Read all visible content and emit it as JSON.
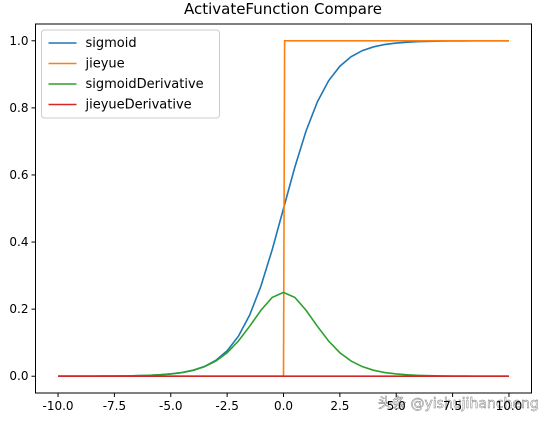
{
  "chart_data": {
    "type": "line",
    "title": "ActivateFunction Compare",
    "watermark": "头条 @yishujihancheng",
    "xlim": [
      -11,
      11
    ],
    "ylim": [
      -0.05,
      1.05
    ],
    "xticks": [
      {
        "value": -10,
        "label": "-10.0"
      },
      {
        "value": -7.5,
        "label": "-7.5"
      },
      {
        "value": -5,
        "label": "-5.0"
      },
      {
        "value": -2.5,
        "label": "-2.5"
      },
      {
        "value": 0,
        "label": "0.0"
      },
      {
        "value": 2.5,
        "label": "2.5"
      },
      {
        "value": 5,
        "label": "5.0"
      },
      {
        "value": 7.5,
        "label": "7.5"
      },
      {
        "value": 10,
        "label": "10.0"
      }
    ],
    "yticks": [
      {
        "value": 0,
        "label": "0.0"
      },
      0.2,
      0.4,
      0.6,
      0.8,
      {
        "value": 1,
        "label": "1.0"
      }
    ],
    "legend": "upper left",
    "series": [
      {
        "name": "sigmoid",
        "color": "#1f77b4",
        "x": [
          -10,
          -9.5,
          -9,
          -8.5,
          -8,
          -7.5,
          -7,
          -6.5,
          -6,
          -5.5,
          -5,
          -4.5,
          -4,
          -3.5,
          -3,
          -2.5,
          -2,
          -1.5,
          -1,
          -0.5,
          0,
          0.5,
          1,
          1.5,
          2,
          2.5,
          3,
          3.5,
          4,
          4.5,
          5,
          5.5,
          6,
          6.5,
          7,
          7.5,
          8,
          8.5,
          9,
          9.5,
          10
        ],
        "values": [
          5e-05,
          7e-05,
          0.00012,
          0.0002,
          0.00034,
          0.00055,
          0.00091,
          0.0015,
          0.0025,
          0.0041,
          0.0067,
          0.011,
          0.018,
          0.0293,
          0.0474,
          0.0759,
          0.1192,
          0.1824,
          0.2689,
          0.3775,
          0.5,
          0.6225,
          0.7311,
          0.8176,
          0.8808,
          0.9241,
          0.9526,
          0.9707,
          0.982,
          0.989,
          0.9933,
          0.9959,
          0.9975,
          0.9985,
          0.9991,
          0.99945,
          0.99966,
          0.9998,
          0.99988,
          0.99993,
          0.99995
        ]
      },
      {
        "name": "jieyue",
        "color": "#ff7f0e",
        "x": [
          -10,
          0,
          0.05,
          10
        ],
        "values": [
          0,
          0,
          1,
          1
        ]
      },
      {
        "name": "sigmoidDerivative",
        "color": "#2ca02c",
        "x": [
          -10,
          -9.5,
          -9,
          -8.5,
          -8,
          -7.5,
          -7,
          -6.5,
          -6,
          -5.5,
          -5,
          -4.5,
          -4,
          -3.5,
          -3,
          -2.5,
          -2,
          -1.5,
          -1,
          -0.5,
          0,
          0.5,
          1,
          1.5,
          2,
          2.5,
          3,
          3.5,
          4,
          4.5,
          5,
          5.5,
          6,
          6.5,
          7,
          7.5,
          8,
          8.5,
          9,
          9.5,
          10
        ],
        "values": [
          5e-05,
          7e-05,
          0.00012,
          0.0002,
          0.00034,
          0.00055,
          0.00091,
          0.0015,
          0.0025,
          0.0041,
          0.0067,
          0.0109,
          0.0177,
          0.0285,
          0.0452,
          0.0701,
          0.105,
          0.1491,
          0.1966,
          0.235,
          0.25,
          0.235,
          0.1966,
          0.1491,
          0.105,
          0.0701,
          0.0452,
          0.0285,
          0.0177,
          0.0109,
          0.0067,
          0.0041,
          0.0025,
          0.0015,
          0.00091,
          0.00055,
          0.00034,
          0.0002,
          0.00012,
          7e-05,
          5e-05
        ]
      },
      {
        "name": "jieyueDerivative",
        "color": "#d62728",
        "x": [
          -10,
          10
        ],
        "values": [
          0,
          0
        ]
      }
    ]
  }
}
